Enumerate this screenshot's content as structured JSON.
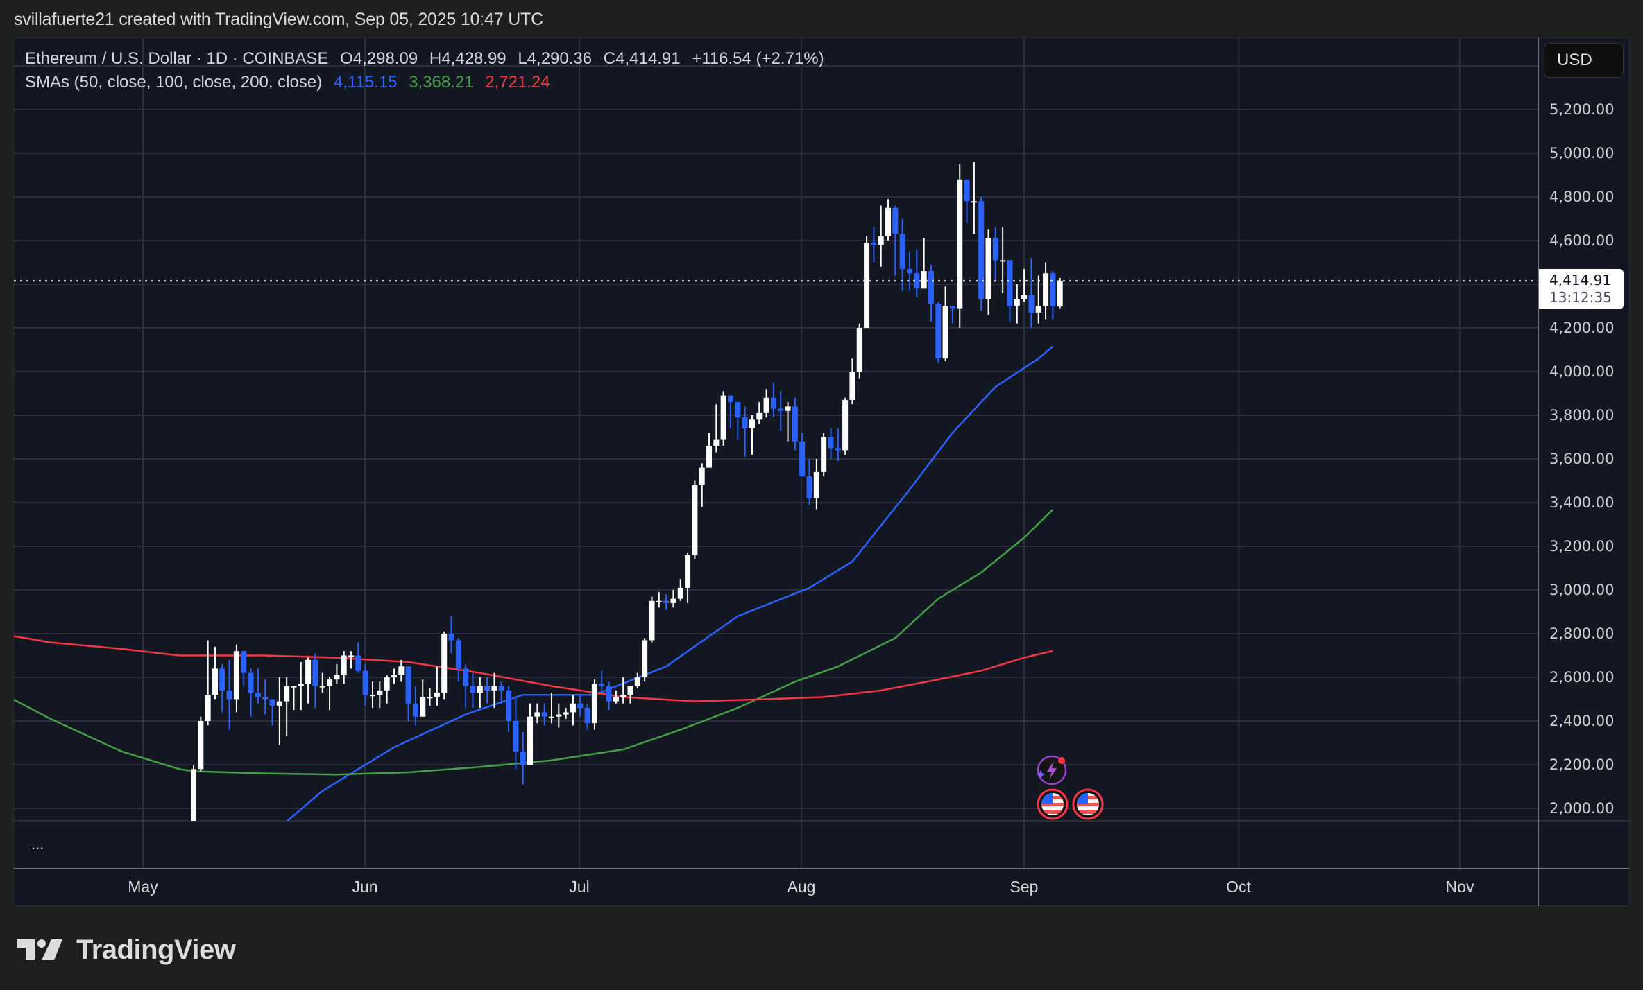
{
  "caption": "svillafuerte21 created with TradingView.com, Sep 05, 2025 10:47 UTC",
  "legend": {
    "symbol": "Ethereum / U.S. Dollar · 1D · COINBASE",
    "open": "O4,298.09",
    "high": "H4,428.99",
    "low": "L4,290.36",
    "close": "C4,414.91",
    "change": "+116.54 (+2.71%)",
    "sma_label": "SMAs (50, close, 100, close, 200, close)",
    "sma50": "4,115.15",
    "sma100": "3,368.21",
    "sma200": "2,721.24"
  },
  "currency_button": "USD",
  "price_tag": {
    "price": "4,414.91",
    "countdown": "13:12:35"
  },
  "indicator_pane_menu": "...",
  "brand": "TradingView",
  "colors": {
    "up_candle": "#ffffff",
    "down_candle": "#2962ff",
    "sma50": "#2962ff",
    "sma100": "#43a047",
    "sma200": "#f23645",
    "background": "#131722",
    "grid": "#2a2e3d"
  },
  "chart_data": {
    "type": "candlestick",
    "title": "Ethereum / U.S. Dollar · 1D · COINBASE",
    "xlabel": "",
    "ylabel": "USD",
    "ylim": [
      1940,
      5400
    ],
    "y_ticks": [
      2000,
      2200,
      2400,
      2600,
      2800,
      3000,
      3200,
      3400,
      3600,
      3800,
      4000,
      4200,
      4400,
      4600,
      4800,
      5000,
      5200
    ],
    "y_tick_labels": [
      "2,000.00",
      "2,200.00",
      "2,400.00",
      "2,600.00",
      "2,800.00",
      "3,000.00",
      "3,200.00",
      "3,400.00",
      "3,600.00",
      "3,800.00",
      "4,000.00",
      "4,200.00",
      "4,400.00",
      "4,600.00",
      "4,800.00",
      "5,000.00",
      "5,200.00"
    ],
    "x_tick_labels": [
      "May",
      "Jun",
      "Jul",
      "Aug",
      "Sep",
      "Oct",
      "Nov"
    ],
    "grid": true,
    "last_price": 4414.91,
    "start_date": "2025-05-08",
    "candles": [
      [
        1810,
        2180,
        1800,
        2200
      ],
      [
        2180,
        2400,
        2170,
        2420
      ],
      [
        2400,
        2520,
        2380,
        2770
      ],
      [
        2520,
        2640,
        2500,
        2740
      ],
      [
        2640,
        2540,
        2440,
        2660
      ],
      [
        2540,
        2500,
        2360,
        2680
      ],
      [
        2500,
        2720,
        2440,
        2750
      ],
      [
        2720,
        2620,
        2560,
        2710
      ],
      [
        2620,
        2530,
        2420,
        2640
      ],
      [
        2530,
        2510,
        2480,
        2640
      ],
      [
        2510,
        2500,
        2430,
        2590
      ],
      [
        2500,
        2470,
        2380,
        2500
      ],
      [
        2470,
        2490,
        2290,
        2600
      ],
      [
        2490,
        2560,
        2330,
        2600
      ],
      [
        2560,
        2560,
        2450,
        2560
      ],
      [
        2560,
        2570,
        2450,
        2670
      ],
      [
        2570,
        2680,
        2480,
        2690
      ],
      [
        2680,
        2560,
        2460,
        2710
      ],
      [
        2560,
        2560,
        2530,
        2620
      ],
      [
        2560,
        2590,
        2450,
        2600
      ],
      [
        2590,
        2610,
        2570,
        2660
      ],
      [
        2610,
        2700,
        2570,
        2720
      ],
      [
        2700,
        2700,
        2640,
        2720
      ],
      [
        2700,
        2630,
        2620,
        2760
      ],
      [
        2630,
        2520,
        2470,
        2660
      ],
      [
        2520,
        2520,
        2460,
        2580
      ],
      [
        2520,
        2540,
        2460,
        2580
      ],
      [
        2540,
        2600,
        2480,
        2610
      ],
      [
        2600,
        2610,
        2570,
        2640
      ],
      [
        2610,
        2650,
        2580,
        2680
      ],
      [
        2650,
        2480,
        2400,
        2640
      ],
      [
        2480,
        2420,
        2380,
        2560
      ],
      [
        2420,
        2510,
        2420,
        2590
      ],
      [
        2510,
        2510,
        2470,
        2550
      ],
      [
        2510,
        2530,
        2470,
        2650
      ],
      [
        2530,
        2800,
        2500,
        2810
      ],
      [
        2800,
        2770,
        2710,
        2880
      ],
      [
        2770,
        2640,
        2580,
        2780
      ],
      [
        2640,
        2560,
        2460,
        2660
      ],
      [
        2560,
        2530,
        2460,
        2620
      ],
      [
        2530,
        2560,
        2460,
        2600
      ],
      [
        2560,
        2540,
        2480,
        2600
      ],
      [
        2540,
        2560,
        2460,
        2620
      ],
      [
        2560,
        2540,
        2480,
        2580
      ],
      [
        2540,
        2400,
        2350,
        2560
      ],
      [
        2400,
        2260,
        2180,
        2510
      ],
      [
        2260,
        2200,
        2110,
        2350
      ],
      [
        2200,
        2420,
        2260,
        2480
      ],
      [
        2420,
        2440,
        2390,
        2480
      ],
      [
        2440,
        2420,
        2380,
        2480
      ],
      [
        2420,
        2420,
        2390,
        2530
      ],
      [
        2420,
        2430,
        2370,
        2480
      ],
      [
        2430,
        2440,
        2410,
        2460
      ],
      [
        2440,
        2480,
        2380,
        2520
      ],
      [
        2480,
        2460,
        2420,
        2520
      ],
      [
        2460,
        2390,
        2360,
        2480
      ],
      [
        2390,
        2570,
        2360,
        2590
      ],
      [
        2570,
        2560,
        2540,
        2630
      ],
      [
        2560,
        2490,
        2450,
        2580
      ],
      [
        2490,
        2510,
        2480,
        2540
      ],
      [
        2510,
        2520,
        2480,
        2600
      ],
      [
        2520,
        2560,
        2480,
        2560
      ],
      [
        2560,
        2600,
        2550,
        2620
      ],
      [
        2600,
        2770,
        2580,
        2780
      ],
      [
        2770,
        2950,
        2760,
        2970
      ],
      [
        2950,
        2950,
        2920,
        2990
      ],
      [
        2950,
        2940,
        2910,
        2980
      ],
      [
        2940,
        2960,
        2920,
        3000
      ],
      [
        2960,
        3010,
        2950,
        3050
      ],
      [
        3010,
        3160,
        2940,
        3170
      ],
      [
        3160,
        3480,
        3140,
        3500
      ],
      [
        3480,
        3560,
        3380,
        3580
      ],
      [
        3560,
        3660,
        3640,
        3720
      ],
      [
        3660,
        3690,
        3630,
        3850
      ],
      [
        3690,
        3890,
        3660,
        3910
      ],
      [
        3890,
        3860,
        3740,
        3890
      ],
      [
        3860,
        3790,
        3690,
        3840
      ],
      [
        3790,
        3740,
        3610,
        3840
      ],
      [
        3740,
        3780,
        3620,
        3800
      ],
      [
        3780,
        3810,
        3760,
        3860
      ],
      [
        3810,
        3880,
        3790,
        3920
      ],
      [
        3880,
        3830,
        3790,
        3950
      ],
      [
        3830,
        3820,
        3730,
        3910
      ],
      [
        3820,
        3840,
        3680,
        3860
      ],
      [
        3840,
        3680,
        3640,
        3880
      ],
      [
        3680,
        3520,
        3520,
        3720
      ],
      [
        3520,
        3420,
        3390,
        3600
      ],
      [
        3420,
        3540,
        3370,
        3600
      ],
      [
        3540,
        3700,
        3520,
        3720
      ],
      [
        3700,
        3650,
        3600,
        3740
      ],
      [
        3650,
        3640,
        3590,
        3740
      ],
      [
        3640,
        3870,
        3620,
        3880
      ],
      [
        3870,
        4000,
        3850,
        4060
      ],
      [
        4000,
        4200,
        3970,
        4220
      ],
      [
        4200,
        4590,
        4200,
        4620
      ],
      [
        4590,
        4580,
        4500,
        4660
      ],
      [
        4580,
        4620,
        4480,
        4760
      ],
      [
        4620,
        4750,
        4600,
        4790
      ],
      [
        4750,
        4630,
        4440,
        4760
      ],
      [
        4630,
        4470,
        4370,
        4700
      ],
      [
        4470,
        4450,
        4370,
        4550
      ],
      [
        4450,
        4380,
        4340,
        4560
      ],
      [
        4380,
        4460,
        4400,
        4610
      ],
      [
        4460,
        4310,
        4230,
        4490
      ],
      [
        4310,
        4060,
        4040,
        4320
      ],
      [
        4060,
        4300,
        4050,
        4390
      ],
      [
        4300,
        4290,
        4220,
        4290
      ],
      [
        4290,
        4880,
        4200,
        4950
      ],
      [
        4880,
        4780,
        4680,
        4880
      ],
      [
        4780,
        4780,
        4630,
        4960
      ],
      [
        4780,
        4330,
        4280,
        4800
      ],
      [
        4330,
        4610,
        4260,
        4650
      ],
      [
        4610,
        4510,
        4420,
        4660
      ],
      [
        4510,
        4510,
        4360,
        4660
      ],
      [
        4510,
        4300,
        4230,
        4480
      ],
      [
        4300,
        4330,
        4220,
        4400
      ],
      [
        4330,
        4350,
        4320,
        4470
      ],
      [
        4350,
        4270,
        4200,
        4520
      ],
      [
        4270,
        4300,
        4220,
        4440
      ],
      [
        4300,
        4450,
        4240,
        4500
      ],
      [
        4450,
        4300,
        4240,
        4460
      ],
      [
        4298.09,
        4414.91,
        4290.36,
        4428.99
      ]
    ],
    "series": [
      {
        "name": "SMA 50",
        "color": "#2962ff",
        "start_value": 1990,
        "end_value": 4115.15,
        "points": [
          [
            0,
            1600
          ],
          [
            8,
            1800
          ],
          [
            18,
            2080
          ],
          [
            28,
            2280
          ],
          [
            38,
            2430
          ],
          [
            46,
            2520
          ],
          [
            56,
            2520
          ],
          [
            66,
            2650
          ],
          [
            76,
            2880
          ],
          [
            86,
            3010
          ],
          [
            92,
            3130
          ],
          [
            100,
            3460
          ],
          [
            106,
            3720
          ],
          [
            112,
            3930
          ],
          [
            118,
            4060
          ],
          [
            120,
            4115.15
          ]
        ]
      },
      {
        "name": "SMA 100",
        "color": "#43a047",
        "start_value": 2510,
        "end_value": 3368.21,
        "points": [
          [
            -27,
            2530
          ],
          [
            -20,
            2410
          ],
          [
            -10,
            2260
          ],
          [
            -2,
            2180
          ],
          [
            0,
            2170
          ],
          [
            10,
            2160
          ],
          [
            20,
            2155
          ],
          [
            30,
            2165
          ],
          [
            40,
            2190
          ],
          [
            50,
            2220
          ],
          [
            60,
            2270
          ],
          [
            68,
            2360
          ],
          [
            76,
            2460
          ],
          [
            84,
            2580
          ],
          [
            90,
            2650
          ],
          [
            98,
            2780
          ],
          [
            104,
            2960
          ],
          [
            110,
            3080
          ],
          [
            116,
            3240
          ],
          [
            120,
            3368.21
          ]
        ]
      },
      {
        "name": "SMA 200",
        "color": "#f23645",
        "start_value": 2800,
        "end_value": 2721.24,
        "points": [
          [
            -27,
            2800
          ],
          [
            -20,
            2760
          ],
          [
            -10,
            2730
          ],
          [
            -2,
            2700
          ],
          [
            0,
            2700
          ],
          [
            10,
            2700
          ],
          [
            20,
            2690
          ],
          [
            30,
            2670
          ],
          [
            40,
            2620
          ],
          [
            50,
            2560
          ],
          [
            60,
            2510
          ],
          [
            70,
            2490
          ],
          [
            80,
            2500
          ],
          [
            88,
            2510
          ],
          [
            96,
            2540
          ],
          [
            104,
            2590
          ],
          [
            110,
            2630
          ],
          [
            116,
            2690
          ],
          [
            120,
            2721.24
          ]
        ]
      }
    ],
    "annotations": [
      "economic-events: 2 US flag markers",
      "news marker"
    ]
  }
}
